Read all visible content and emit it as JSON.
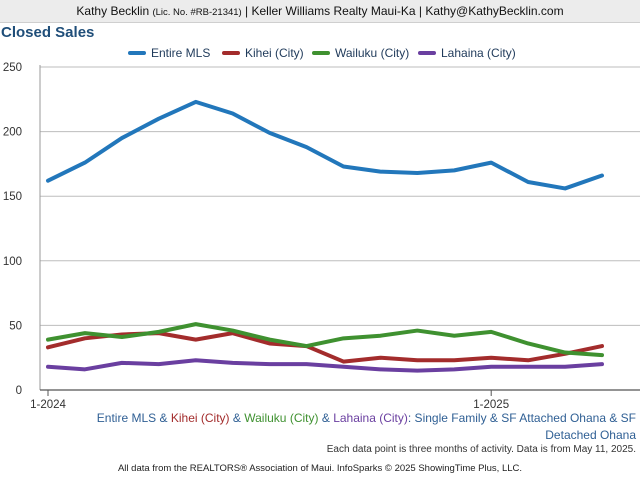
{
  "header": {
    "agent_name": "Kathy Becklin",
    "license": "(Lic. No. #RB-21341)",
    "rest": "| Keller Williams Realty Maui-Ka | Kathy@KathyBecklin.com"
  },
  "chart_data": {
    "type": "line",
    "title": "Closed Sales",
    "x": [
      "2024-01",
      "2024-02",
      "2024-03",
      "2024-04",
      "2024-05",
      "2024-06",
      "2024-07",
      "2024-08",
      "2024-09",
      "2024-10",
      "2024-11",
      "2024-12",
      "2025-01",
      "2025-02",
      "2025-03",
      "2025-04"
    ],
    "x_tick_labels": [
      {
        "x": "2024-01",
        "label": "1-2024"
      },
      {
        "x": "2025-01",
        "label": "1-2025"
      }
    ],
    "ylim": [
      0,
      250
    ],
    "yticks": [
      0,
      50,
      100,
      150,
      200,
      250
    ],
    "grid": true,
    "legend": "top",
    "series": [
      {
        "name": "Entire MLS",
        "color": "#2277bb",
        "values": [
          162,
          176,
          195,
          210,
          223,
          214,
          199,
          188,
          173,
          169,
          168,
          170,
          176,
          161,
          156,
          166
        ]
      },
      {
        "name": "Kihei (City)",
        "color": "#a32c2c",
        "values": [
          33,
          40,
          43,
          44,
          39,
          44,
          36,
          34,
          22,
          25,
          23,
          23,
          25,
          23,
          28,
          34
        ]
      },
      {
        "name": "Wailuku (City)",
        "color": "#3f9130",
        "values": [
          39,
          44,
          41,
          45,
          51,
          46,
          39,
          34,
          40,
          42,
          46,
          42,
          45,
          36,
          29,
          27
        ]
      },
      {
        "name": "Lahaina (City)",
        "color": "#6a3fa0",
        "values": [
          18,
          16,
          21,
          20,
          23,
          21,
          20,
          20,
          18,
          16,
          15,
          16,
          18,
          18,
          18,
          20
        ]
      }
    ]
  },
  "caption": {
    "s1": "Entire MLS",
    "amp": "&",
    "s2": "Kihei (City)",
    "s3": "Wailuku (City)",
    "s4": "Lahaina (City)",
    "desc_line1": ": Single Family & SF Attached Ohana & SF",
    "desc_line2": "Detached Ohana"
  },
  "note": "Each data point is three months of activity. Data is from May 11, 2025.",
  "footer": "All data from the REALTORS® Association of Maui. InfoSparks © 2025 ShowingTime Plus, LLC."
}
